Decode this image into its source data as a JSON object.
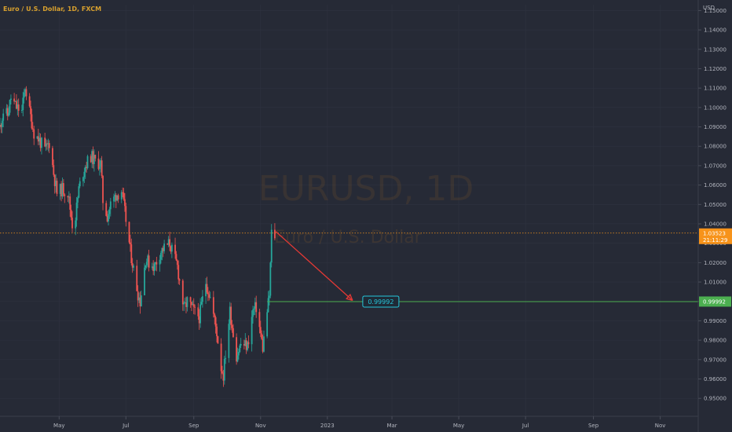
{
  "header": {
    "title": "Euro / U.S. Dollar, 1D, FXCM"
  },
  "watermark": {
    "symbol": "EURUSD, 1D",
    "name": "Euro / U.S. Dollar"
  },
  "colors": {
    "background": "#262a36",
    "up": "#26a69a",
    "down": "#ef5350",
    "title": "#d7a02e",
    "price_line": "#f7931a",
    "target": "#4caf50",
    "arrow": "#e53935",
    "label_border": "#26c6da"
  },
  "chart_data": {
    "type": "candlestick",
    "title": "Euro / U.S. Dollar, 1D, FXCM",
    "ylabel": "USD",
    "ylim": [
      0.944,
      1.153
    ],
    "y_ticks": [
      "1.15000",
      "1.14000",
      "1.13000",
      "1.12000",
      "1.11000",
      "1.10000",
      "1.09000",
      "1.08000",
      "1.07000",
      "1.06000",
      "1.05000",
      "1.04000",
      "1.03000",
      "1.02000",
      "1.01000",
      "1.00000",
      "0.99000",
      "0.98000",
      "0.97000",
      "0.96000",
      "0.95000"
    ],
    "x_ticks": [
      "May",
      "Jul",
      "Sep",
      "Nov",
      "2023",
      "Mar",
      "May",
      "Jul",
      "Sep",
      "Nov"
    ],
    "x_tick_dates": [
      "2022-05-01",
      "2022-07-01",
      "2022-09-01",
      "2022-11-01",
      "2023-01-01",
      "2023-03-01",
      "2023-05-01",
      "2023-07-01",
      "2023-09-01",
      "2023-11-01"
    ],
    "x_range": [
      "2022-03-08",
      "2023-12-05"
    ],
    "series_path": [
      [
        "2022-03-08",
        1.09
      ],
      [
        "2022-03-11",
        1.098
      ],
      [
        "2022-03-15",
        1.096
      ],
      [
        "2022-03-18",
        1.105
      ],
      [
        "2022-03-23",
        1.1
      ],
      [
        "2022-03-28",
        1.098
      ],
      [
        "2022-03-31",
        1.111
      ],
      [
        "2022-04-04",
        1.098
      ],
      [
        "2022-04-08",
        1.087
      ],
      [
        "2022-04-13",
        1.083
      ],
      [
        "2022-04-18",
        1.078
      ],
      [
        "2022-04-22",
        1.082
      ],
      [
        "2022-04-26",
        1.066
      ],
      [
        "2022-04-29",
        1.056
      ],
      [
        "2022-05-04",
        1.058
      ],
      [
        "2022-05-09",
        1.056
      ],
      [
        "2022-05-13",
        1.04
      ],
      [
        "2022-05-16",
        1.044
      ],
      [
        "2022-05-19",
        1.058
      ],
      [
        "2022-05-24",
        1.069
      ],
      [
        "2022-05-30",
        1.075
      ],
      [
        "2022-06-03",
        1.072
      ],
      [
        "2022-06-08",
        1.071
      ],
      [
        "2022-06-10",
        1.052
      ],
      [
        "2022-06-14",
        1.044
      ],
      [
        "2022-06-17",
        1.05
      ],
      [
        "2022-06-22",
        1.055
      ],
      [
        "2022-06-27",
        1.057
      ],
      [
        "2022-06-30",
        1.046
      ],
      [
        "2022-07-05",
        1.026
      ],
      [
        "2022-07-12",
        1.004
      ],
      [
        "2022-07-14",
        1.0
      ],
      [
        "2022-07-19",
        1.022
      ],
      [
        "2022-07-22",
        1.02
      ],
      [
        "2022-07-27",
        1.018
      ],
      [
        "2022-08-02",
        1.026
      ],
      [
        "2022-08-10",
        1.03
      ],
      [
        "2022-08-17",
        1.018
      ],
      [
        "2022-08-23",
        0.996
      ],
      [
        "2022-08-26",
        1.0
      ],
      [
        "2022-09-01",
        0.995
      ],
      [
        "2022-09-06",
        0.992
      ],
      [
        "2022-09-12",
        1.01
      ],
      [
        "2022-09-16",
        1.002
      ],
      [
        "2022-09-22",
        0.984
      ],
      [
        "2022-09-26",
        0.966
      ],
      [
        "2022-09-28",
        0.962
      ],
      [
        "2022-10-04",
        0.995
      ],
      [
        "2022-10-10",
        0.972
      ],
      [
        "2022-10-14",
        0.978
      ],
      [
        "2022-10-20",
        0.977
      ],
      [
        "2022-10-25",
        0.995
      ],
      [
        "2022-10-28",
        0.997
      ],
      [
        "2022-11-03",
        0.976
      ],
      [
        "2022-11-07",
        0.995
      ],
      [
        "2022-11-09",
        1.003
      ],
      [
        "2022-11-11",
        1.035
      ],
      [
        "2022-11-14",
        1.034
      ],
      [
        "2022-11-15",
        1.042
      ]
    ],
    "last_price": {
      "value": "1.03523",
      "countdown": "21:11:29"
    },
    "target": {
      "value": "0.99992",
      "start_date": "2022-11-07"
    },
    "arrow": {
      "from": [
        "2022-11-15",
        1.036
      ],
      "to": [
        "2023-01-24",
        1.0005
      ]
    }
  }
}
